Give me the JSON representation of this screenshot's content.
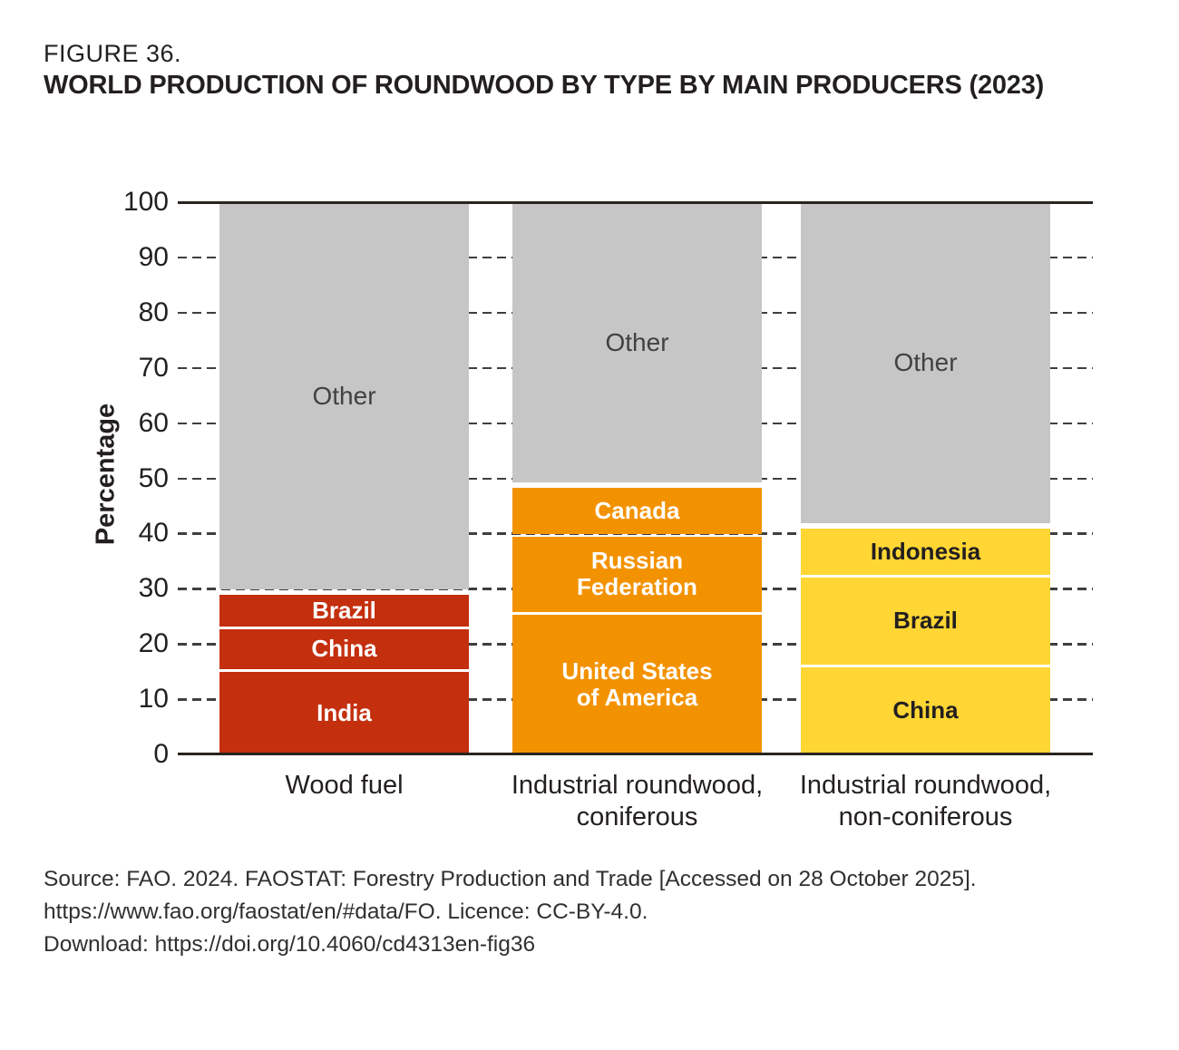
{
  "figure": {
    "label": "FIGURE 36.",
    "title": "WORLD PRODUCTION OF ROUNDWOOD BY TYPE BY MAIN PRODUCERS (2023)"
  },
  "chart_data": {
    "type": "bar",
    "stacked": true,
    "grid": true,
    "legend": false,
    "ylabel": "Percentage",
    "ylim": [
      0,
      100
    ],
    "yticks": [
      0,
      10,
      20,
      30,
      40,
      50,
      60,
      70,
      80,
      90,
      100
    ],
    "categories": [
      "Wood fuel",
      "Industrial roundwood,\nconiferous",
      "Industrial roundwood,\nnon-coniferous"
    ],
    "colors": {
      "wood_fuel": "#C42F0E",
      "industrial_coniferous": "#F39200",
      "industrial_non_coniferous": "#FFD634",
      "other": "#C6C6C6"
    },
    "bars": [
      {
        "category": "Wood fuel",
        "color": "#C42F0E",
        "label_color": "#FFFFFF",
        "segments": [
          {
            "name": "India",
            "value": 15.5
          },
          {
            "name": "China",
            "value": 7.7
          },
          {
            "name": "Brazil",
            "value": 6.2
          },
          {
            "name": "Other",
            "value": 70.6
          }
        ]
      },
      {
        "category": "Industrial roundwood,\nconiferous",
        "color": "#F39200",
        "label_color": "#FFFFFF",
        "segments": [
          {
            "name": "United States\nof America",
            "value": 25.8
          },
          {
            "name": "Russian\nFederation",
            "value": 14.1
          },
          {
            "name": "Canada",
            "value": 8.9
          },
          {
            "name": "Other",
            "value": 51.2
          }
        ]
      },
      {
        "category": "Industrial roundwood,\nnon-coniferous",
        "color": "#FFD634",
        "label_color": "#231F20",
        "segments": [
          {
            "name": "China",
            "value": 16.3
          },
          {
            "name": "Brazil",
            "value": 16.2
          },
          {
            "name": "Indonesia",
            "value": 8.9
          },
          {
            "name": "Other",
            "value": 58.6
          }
        ]
      }
    ]
  },
  "source": {
    "line1": "Source: FAO. 2024. FAOSTAT: Forestry Production and Trade [Accessed on 28 October 2025].",
    "line2": "https://www.fao.org/faostat/en/#data/FO. Licence: CC-BY-4.0.",
    "line3": "Download: https://doi.org/10.4060/cd4313en-fig36"
  }
}
